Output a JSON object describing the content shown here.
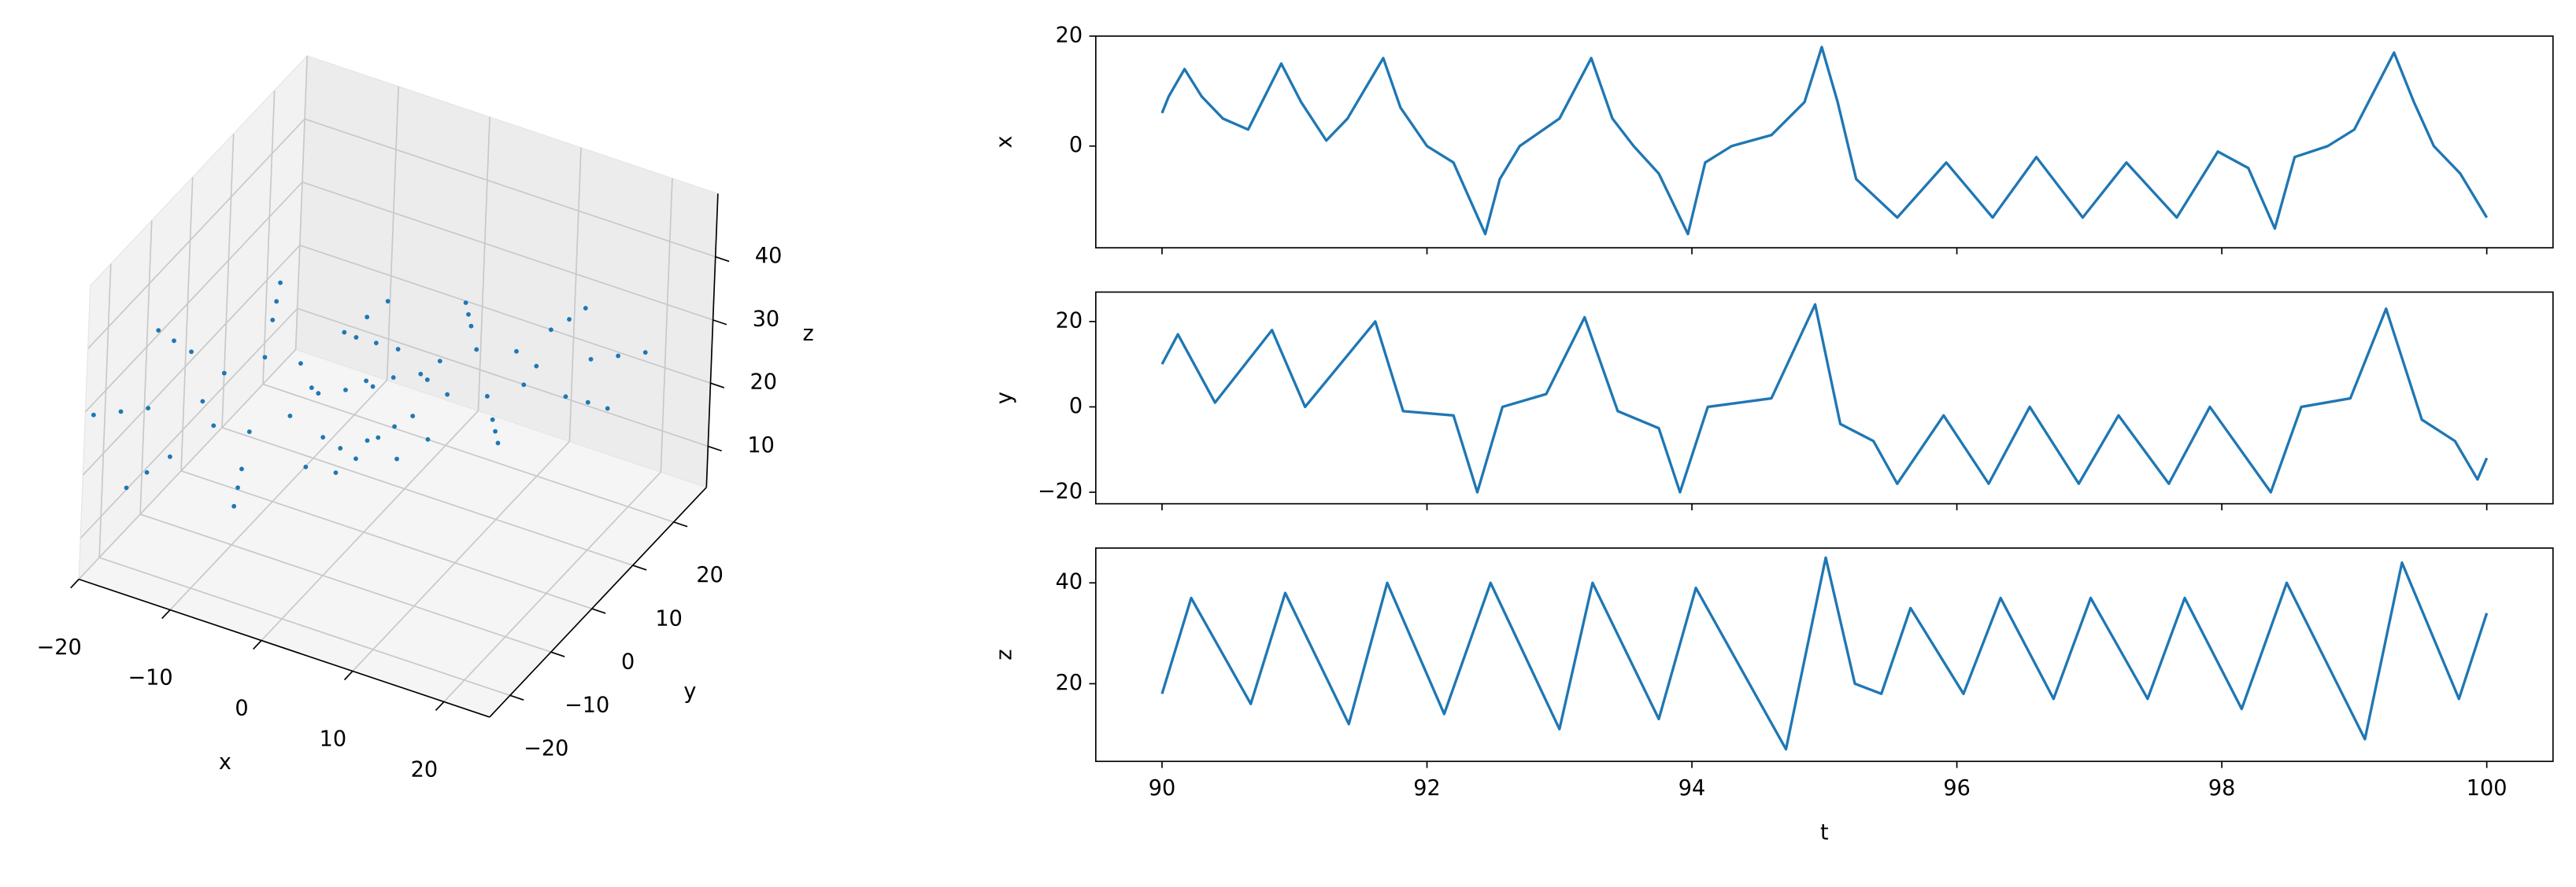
{
  "chart_data": [
    {
      "type": "scatter3d",
      "xlabel": "x",
      "ylabel": "y",
      "zlabel": "z",
      "color": "#1f77b4",
      "grid": true,
      "xlim": [
        -20,
        25
      ],
      "ylim": [
        -25,
        28
      ],
      "zlim": [
        3.5,
        50
      ],
      "xticks": [
        {
          "value": -20,
          "label": "−20"
        },
        {
          "value": -10,
          "label": "−10"
        },
        0,
        10,
        20
      ],
      "yticks": [
        {
          "value": -20,
          "label": "−20"
        },
        {
          "value": -10,
          "label": "−10"
        },
        0,
        10,
        20
      ],
      "zticks": [
        10,
        20,
        30,
        40
      ],
      "x": [
        -4.5,
        -5.7,
        -8.5,
        -11.3,
        -12.5,
        -11.3,
        -8.5,
        -5.7,
        -0.5,
        -2.9,
        -8.5,
        -14.1,
        -16.5,
        -14.1,
        -8.5,
        -2.9,
        1.5,
        -1.4,
        -8.5,
        -15.6,
        -18.5,
        -15.6,
        -8.5,
        -1.4,
        3.5,
        -0.1,
        -8.5,
        -16.9,
        -20.5,
        -16.9,
        -8.5,
        -0.1,
        4.5,
        5.7,
        8.5,
        11.3,
        12.5,
        11.3,
        8.5,
        5.7,
        0.5,
        2.9,
        8.5,
        14.1,
        16.5,
        14.1,
        8.5,
        2.9,
        -1.5,
        1.4,
        8.5,
        15.6,
        18.5,
        15.6,
        8.5,
        1.4,
        -3.5,
        0.1,
        8.5,
        16.9,
        20.5,
        16.9,
        8.5,
        0.1,
        -2,
        2,
        0,
        -4,
        4
      ],
      "y": [
        -4.1,
        -4.3,
        -6.9,
        -10.5,
        -12.9,
        -12.7,
        -10.1,
        -6.5,
        0.3,
        -0.1,
        -5.3,
        -12.5,
        -17.3,
        -16.9,
        -11.7,
        -4.5,
        2.5,
        2.0,
        -4.5,
        -13.5,
        -19.5,
        -19.1,
        -12.5,
        -3.5,
        4.7,
        4.1,
        -3.7,
        -14.5,
        -21.7,
        -21.1,
        -13.3,
        -2.5,
        4.1,
        4.3,
        6.9,
        10.5,
        12.9,
        12.7,
        10.1,
        6.5,
        -0.3,
        0.1,
        5.3,
        12.5,
        17.3,
        16.9,
        11.7,
        4.5,
        -2.5,
        -2.0,
        4.5,
        13.5,
        19.5,
        19.1,
        12.5,
        3.5,
        -4.7,
        -4.1,
        3.7,
        14.5,
        21.7,
        21.1,
        13.3,
        2.5,
        -3,
        3,
        0,
        -6,
        6
      ],
      "z": [
        27,
        30.4,
        31.8,
        30.4,
        27,
        23.6,
        22.2,
        23.6,
        27,
        33.8,
        36.6,
        33.8,
        27,
        20.2,
        17.4,
        20.2,
        27,
        35.5,
        39,
        35.5,
        27,
        18.5,
        15,
        18.5,
        27,
        37.2,
        41.4,
        37.2,
        27,
        16.8,
        12.6,
        16.8,
        27,
        30.4,
        31.8,
        30.4,
        27,
        23.6,
        22.2,
        23.6,
        27,
        33.8,
        36.6,
        33.8,
        27,
        20.2,
        17.4,
        20.2,
        27,
        35.5,
        39,
        35.5,
        27,
        18.5,
        15,
        18.5,
        27,
        37.2,
        41.4,
        37.2,
        27,
        16.8,
        12.6,
        16.8,
        14,
        14,
        18,
        16,
        16
      ]
    },
    {
      "type": "line",
      "ylabel": "x",
      "color": "#1f77b4",
      "xticklabels": false,
      "xlim": [
        89.5,
        100.5
      ],
      "ylim": [
        -18.5,
        20
      ],
      "xticks": [
        90,
        92,
        94,
        96,
        98,
        100
      ],
      "yticks": [
        0,
        20
      ],
      "x": [
        90,
        90.05,
        90.17,
        90.3,
        90.46,
        90.65,
        90.9,
        91.05,
        91.24,
        91.4,
        91.67,
        91.8,
        92.0,
        92.2,
        92.44,
        92.55,
        92.7,
        93.0,
        93.24,
        93.4,
        93.56,
        93.75,
        93.97,
        94.1,
        94.3,
        94.6,
        94.85,
        94.98,
        95.1,
        95.24,
        95.55,
        95.92,
        96.27,
        96.6,
        96.95,
        97.28,
        97.66,
        97.97,
        98.2,
        98.4,
        98.55,
        98.8,
        99.0,
        99.3,
        99.45,
        99.6,
        99.8,
        100
      ],
      "values": [
        6,
        9,
        14,
        9,
        5,
        3,
        15,
        8,
        1,
        5,
        16,
        7,
        0,
        -3,
        -16,
        -6,
        0,
        5,
        16,
        5,
        0,
        -5,
        -16,
        -3,
        0,
        2,
        8,
        18,
        8,
        -6,
        -13,
        -3,
        -13,
        -2,
        -13,
        -3,
        -13,
        -1,
        -4,
        -15,
        -2,
        0,
        3,
        17,
        8,
        0,
        -5,
        -13
      ]
    },
    {
      "type": "line",
      "ylabel": "y",
      "color": "#1f77b4",
      "xticklabels": false,
      "xlim": [
        89.5,
        100.5
      ],
      "ylim": [
        -22.7,
        26.9
      ],
      "xticks": [
        90,
        92,
        94,
        96,
        98,
        100
      ],
      "yticks": [
        {
          "value": -20,
          "label": "−20"
        },
        0,
        20
      ],
      "x": [
        90,
        90.12,
        90.4,
        90.83,
        91.08,
        91.61,
        91.82,
        92.2,
        92.38,
        92.57,
        92.9,
        93.19,
        93.44,
        93.75,
        93.91,
        94.12,
        94.6,
        94.93,
        95.12,
        95.37,
        95.55,
        95.9,
        96.24,
        96.55,
        96.92,
        97.22,
        97.6,
        97.91,
        98.37,
        98.6,
        98.97,
        99.24,
        99.51,
        99.76,
        99.93,
        100
      ],
      "values": [
        10,
        17,
        1,
        18,
        0,
        20,
        -1,
        -2,
        -20,
        0,
        3,
        21,
        -1,
        -5,
        -20,
        0,
        2,
        24,
        -4,
        -8,
        -18,
        -2,
        -18,
        0,
        -18,
        -2,
        -18,
        0,
        -20,
        0,
        2,
        23,
        -3,
        -8,
        -17,
        -12
      ]
    },
    {
      "type": "line",
      "ylabel": "z",
      "xlabel": "t",
      "color": "#1f77b4",
      "xticklabels": true,
      "xlim": [
        89.5,
        100.5
      ],
      "ylim": [
        4.6,
        46.9
      ],
      "xticks": [
        90,
        92,
        94,
        96,
        98,
        100
      ],
      "yticks": [
        20,
        40
      ],
      "x": [
        90,
        90.22,
        90.67,
        90.93,
        91.41,
        91.7,
        92.13,
        92.48,
        93.0,
        93.25,
        93.75,
        94.03,
        94.71,
        95.01,
        95.23,
        95.43,
        95.65,
        96.05,
        96.33,
        96.73,
        97.01,
        97.44,
        97.72,
        98.15,
        98.49,
        99.08,
        99.36,
        99.79,
        100
      ],
      "values": [
        18,
        37,
        16,
        38,
        12,
        40,
        14,
        40,
        11,
        40,
        13,
        39,
        7,
        45,
        20,
        18,
        35,
        18,
        37,
        17,
        37,
        17,
        37,
        15,
        40,
        9,
        44,
        17,
        34
      ]
    }
  ]
}
